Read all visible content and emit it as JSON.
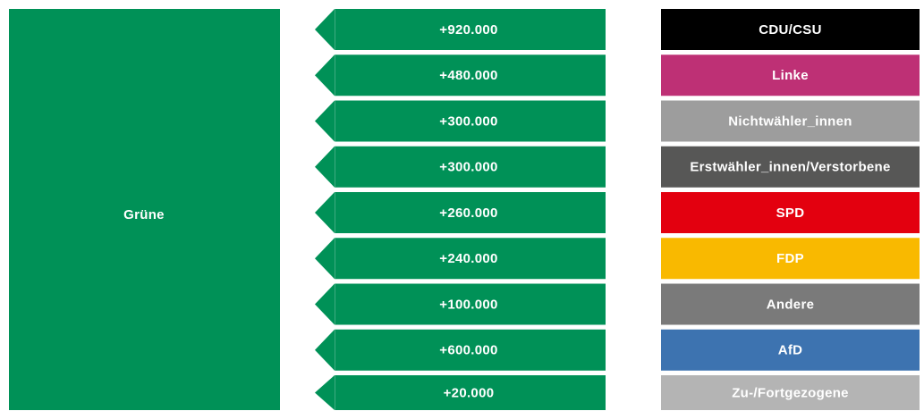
{
  "target": {
    "label": "Grüne",
    "color": "#009157"
  },
  "flows": [
    {
      "value": "+920.000",
      "source": "CDU/CSU",
      "color": "#000000"
    },
    {
      "value": "+480.000",
      "source": "Linke",
      "color": "#be3075"
    },
    {
      "value": "+300.000",
      "source": "Nichtwähler_innen",
      "color": "#9d9d9d"
    },
    {
      "value": "+300.000",
      "source": "Erstwähler_innen/Verstorbene",
      "color": "#575756"
    },
    {
      "value": "+260.000",
      "source": "SPD",
      "color": "#e3000f"
    },
    {
      "value": "+240.000",
      "source": "FDP",
      "color": "#f9b900"
    },
    {
      "value": "+100.000",
      "source": "Andere",
      "color": "#7a7a7a"
    },
    {
      "value": "+600.000",
      "source": "AfD",
      "color": "#3d73b0"
    },
    {
      "value": "+20.000",
      "source": "Zu-/Fortgezogene",
      "color": "#b4b4b4"
    }
  ]
}
